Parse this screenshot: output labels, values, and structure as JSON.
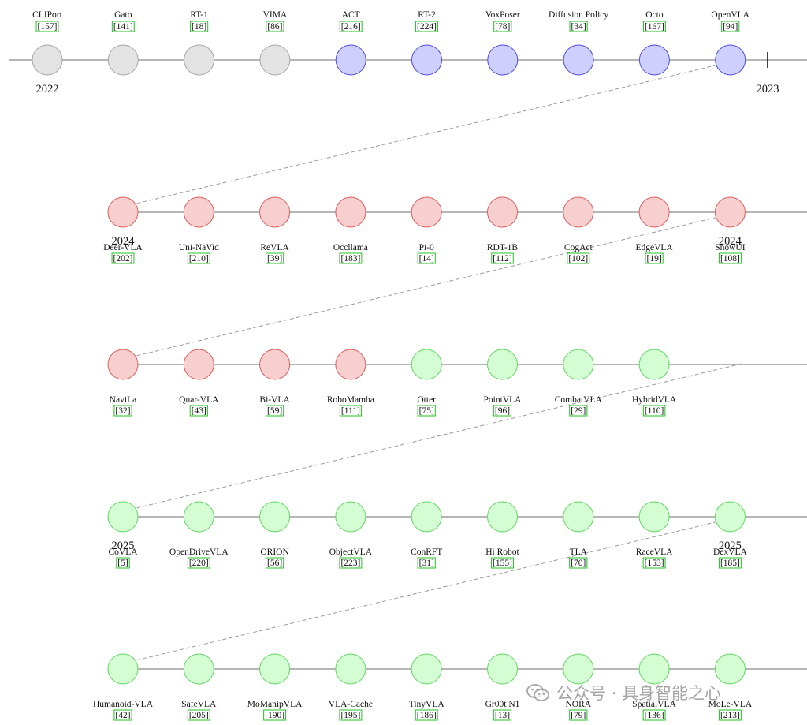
{
  "colors": {
    "line": "#6e6e6e",
    "connector": "#9a9a9a",
    "cite_bg": "#ffffff",
    "cite_border": "#22c422",
    "text": "#111111"
  },
  "groups": {
    "gray": {
      "fill": "#e3e3e3",
      "stroke": "#a5a5a5"
    },
    "blue": {
      "fill": "#cfcffd",
      "stroke": "#4b4be6"
    },
    "red": {
      "fill": "#f8cfcf",
      "stroke": "#e05a5a"
    },
    "green": {
      "fill": "#d4fdd4",
      "stroke": "#5ed95e"
    }
  },
  "rows": [
    {
      "label_position": "above",
      "year_markers": [
        {
          "text": "2022",
          "node": 0
        },
        {
          "text": "2023",
          "node": 10
        }
      ],
      "nodes": [
        {
          "name": "CLIPort",
          "cite": "[157]",
          "group": "gray"
        },
        {
          "name": "Gato",
          "cite": "[141]",
          "group": "gray"
        },
        {
          "name": "RT-1",
          "cite": "[18]",
          "group": "gray"
        },
        {
          "name": "VIMA",
          "cite": "[86]",
          "group": "gray"
        },
        {
          "name": "ACT",
          "cite": "[216]",
          "group": "blue"
        },
        {
          "name": "RT-2",
          "cite": "[224]",
          "group": "blue"
        },
        {
          "name": "VoxPoser",
          "cite": "[78]",
          "group": "blue"
        },
        {
          "name": "Diffusion Policy",
          "cite": "[34]",
          "group": "blue"
        },
        {
          "name": "Octo",
          "cite": "[167]",
          "group": "blue"
        },
        {
          "name": "OpenVLA",
          "cite": "[94]",
          "group": "blue"
        }
      ]
    },
    {
      "label_position": "below",
      "year_markers": [
        {
          "text": "2024",
          "node": 0
        },
        {
          "text": "2024",
          "node": 8
        }
      ],
      "nodes": [
        {
          "name": "Deer-VLA",
          "cite": "[202]",
          "group": "red"
        },
        {
          "name": "Uni-NaVid",
          "cite": "[210]",
          "group": "red"
        },
        {
          "name": "ReVLA",
          "cite": "[39]",
          "group": "red"
        },
        {
          "name": "Occllama",
          "cite": "[183]",
          "group": "red"
        },
        {
          "name": "Pi-0",
          "cite": "[14]",
          "group": "red"
        },
        {
          "name": "RDT-1B",
          "cite": "[112]",
          "group": "red"
        },
        {
          "name": "CogAct",
          "cite": "[102]",
          "group": "red"
        },
        {
          "name": "EdgeVLA",
          "cite": "[19]",
          "group": "red"
        },
        {
          "name": "ShowUI",
          "cite": "[108]",
          "group": "red"
        }
      ]
    },
    {
      "label_position": "below",
      "year_markers": [],
      "nodes": [
        {
          "name": "NaviLa",
          "cite": "[32]",
          "group": "red"
        },
        {
          "name": "Quar-VLA",
          "cite": "[43]",
          "group": "red"
        },
        {
          "name": "Bi-VLA",
          "cite": "[59]",
          "group": "red"
        },
        {
          "name": "RoboMamba",
          "cite": "[111]",
          "group": "red"
        },
        {
          "name": "Otter",
          "cite": "[75]",
          "group": "green"
        },
        {
          "name": "PointVLA",
          "cite": "[96]",
          "group": "green"
        },
        {
          "name": "CombatVLA",
          "cite": "[29]",
          "group": "green"
        },
        {
          "name": "HybridVLA",
          "cite": "[110]",
          "group": "green"
        }
      ]
    },
    {
      "label_position": "below",
      "year_markers": [
        {
          "text": "2025",
          "node": 0
        },
        {
          "text": "2025",
          "node": 8
        }
      ],
      "nodes": [
        {
          "name": "CoVLA",
          "cite": "[5]",
          "group": "green"
        },
        {
          "name": "OpenDriveVLA",
          "cite": "[220]",
          "group": "green"
        },
        {
          "name": "ORION",
          "cite": "[56]",
          "group": "green"
        },
        {
          "name": "ObjectVLA",
          "cite": "[223]",
          "group": "green"
        },
        {
          "name": "ConRFT",
          "cite": "[31]",
          "group": "green"
        },
        {
          "name": "Hi Robot",
          "cite": "[155]",
          "group": "green"
        },
        {
          "name": "TLA",
          "cite": "[70]",
          "group": "green"
        },
        {
          "name": "RaceVLA",
          "cite": "[153]",
          "group": "green"
        },
        {
          "name": "DexVLA",
          "cite": "[185]",
          "group": "green"
        }
      ]
    },
    {
      "label_position": "below",
      "year_markers": [],
      "nodes": [
        {
          "name": "Humanoid-VLA",
          "cite": "[42]",
          "group": "green"
        },
        {
          "name": "SafeVLA",
          "cite": "[205]",
          "group": "green"
        },
        {
          "name": "MoManipVLA",
          "cite": "[190]",
          "group": "green"
        },
        {
          "name": "VLA-Cache",
          "cite": "[195]",
          "group": "green"
        },
        {
          "name": "TinyVLA",
          "cite": "[186]",
          "group": "green"
        },
        {
          "name": "Gr00t N1",
          "cite": "[13]",
          "group": "green"
        },
        {
          "name": "NORA",
          "cite": "[79]",
          "group": "green"
        },
        {
          "name": "SpatialVLA",
          "cite": "[136]",
          "group": "green"
        },
        {
          "name": "MoLe-VLA",
          "cite": "[213]",
          "group": "green"
        }
      ]
    }
  ],
  "watermark": {
    "text": "公众号 · 具身智能之心",
    "icon": "wechat-icon"
  }
}
